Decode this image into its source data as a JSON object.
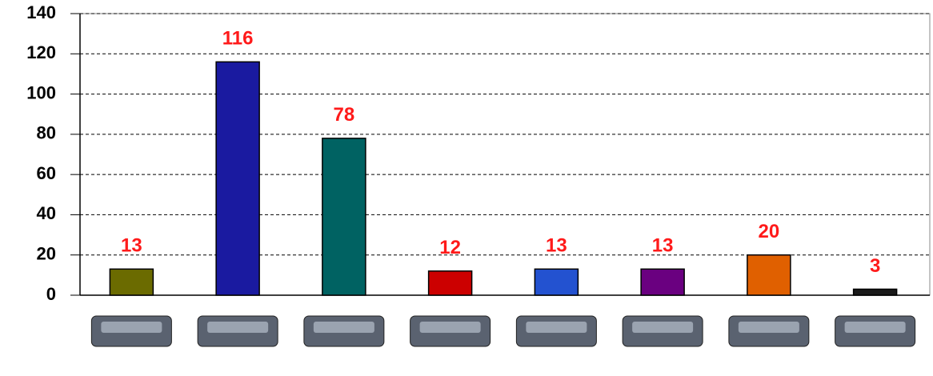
{
  "chart_data": {
    "type": "bar",
    "categories": [
      null,
      null,
      null,
      null,
      null,
      null,
      null,
      null
    ],
    "values": [
      13,
      116,
      78,
      12,
      13,
      13,
      20,
      3
    ],
    "colors": [
      "#6b6b00",
      "#1a1aa0",
      "#006262",
      "#cc0000",
      "#2352d0",
      "#6a0080",
      "#e06000",
      "#1a1a1a"
    ],
    "value_label_color": "#ff1a1a",
    "ylim": [
      0,
      140
    ],
    "yticks": [
      0,
      20,
      40,
      60,
      80,
      100,
      120,
      140
    ],
    "grid": true
  }
}
